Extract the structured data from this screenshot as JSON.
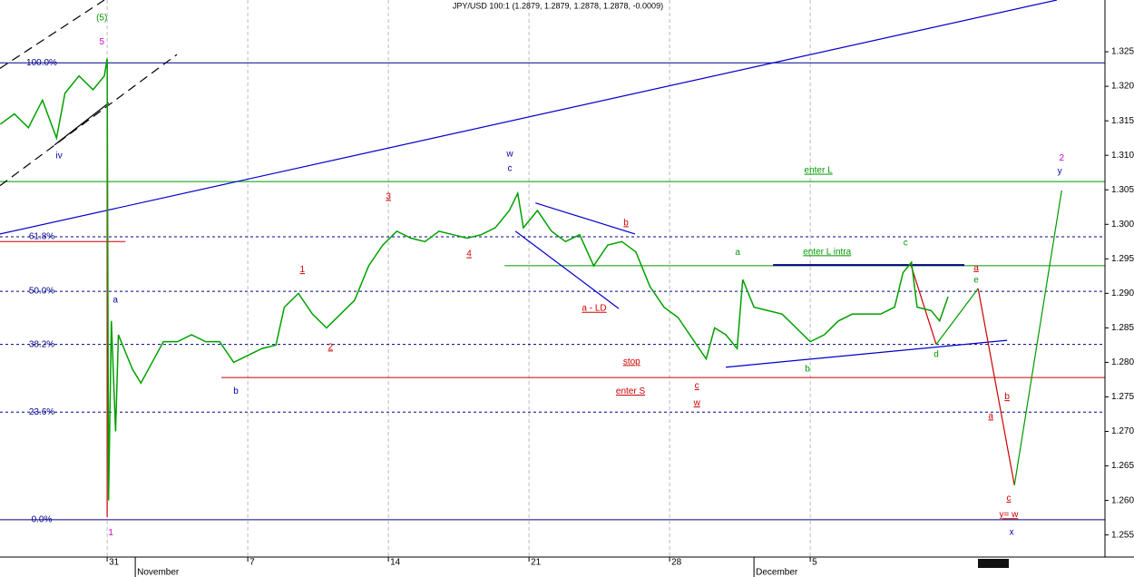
{
  "chart_data": {
    "type": "line",
    "title": "JPY/USD 100:1 (1.2879, 1.2879, 1.2878, 1.2878, -0.0009)",
    "xlim": [
      -3.81,
      35.48
    ],
    "ylim": [
      1.2518,
      1.3325
    ],
    "xticks": [
      {
        "value": 0,
        "label": "31"
      },
      {
        "value": 5,
        "label": "7"
      },
      {
        "value": 10,
        "label": "14"
      },
      {
        "value": 15,
        "label": "21"
      },
      {
        "value": 20,
        "label": "28"
      },
      {
        "value": 25,
        "label": "5"
      }
    ],
    "months": [
      {
        "value": 1,
        "label": "November"
      },
      {
        "value": 23,
        "label": "December"
      }
    ],
    "yticks": [
      1.255,
      {
        "value": 1.26,
        "label": "1.260"
      },
      1.265,
      {
        "value": 1.27,
        "label": "1.270"
      },
      1.275,
      {
        "value": 1.28,
        "label": "1.280"
      },
      1.285,
      {
        "value": 1.29,
        "label": "1.290"
      },
      1.295,
      {
        "value": 1.3,
        "label": "1.300"
      },
      1.305,
      {
        "value": 1.31,
        "label": "1.310"
      },
      1.315,
      {
        "value": 1.32,
        "label": "1.320"
      },
      1.325
    ],
    "grid": true,
    "series": [
      {
        "color": "#00a000",
        "x": [
          -3.8,
          -3.3,
          -2.8,
          -2.3,
          -1.8,
          -1.5,
          -1.0,
          -0.5,
          -0.1,
          0.0,
          0.05,
          0.15,
          0.3,
          0.4,
          0.6,
          0.9,
          1.2,
          1.6,
          2.0,
          2.5,
          3.0,
          3.5,
          4.0,
          4.5,
          5.0,
          5.5,
          6.0,
          6.3,
          6.8,
          7.3,
          7.8,
          8.3,
          8.8,
          9.3,
          9.8,
          10.3,
          10.8,
          11.3,
          11.8,
          12.3,
          12.8,
          13.3,
          13.8,
          14.3,
          14.6,
          14.8,
          15.3,
          15.8,
          16.3,
          16.8,
          17.3,
          17.8,
          18.3,
          18.8,
          19.3,
          19.8,
          20.3,
          20.8,
          21.3,
          21.6,
          22.0,
          22.4,
          22.6,
          23.0,
          23.5,
          24.0,
          24.5,
          25.0,
          25.5,
          26.0,
          26.5,
          27.0,
          27.5,
          28.0,
          28.3,
          28.6,
          28.8,
          29.3,
          29.6,
          29.9
        ],
        "values": [
          1.3145,
          1.316,
          1.314,
          1.318,
          1.3125,
          1.319,
          1.3215,
          1.3195,
          1.3215,
          1.324,
          1.26,
          1.286,
          1.27,
          1.284,
          1.282,
          1.279,
          1.277,
          1.28,
          1.283,
          1.283,
          1.284,
          1.283,
          1.283,
          1.28,
          1.281,
          1.282,
          1.2825,
          1.288,
          1.29,
          1.287,
          1.285,
          1.287,
          1.289,
          1.294,
          1.297,
          1.299,
          1.298,
          1.2975,
          1.299,
          1.2985,
          1.298,
          1.2985,
          1.2995,
          1.302,
          1.3045,
          1.2995,
          1.302,
          1.299,
          1.2975,
          1.2985,
          1.294,
          1.297,
          1.2975,
          1.296,
          1.291,
          1.288,
          1.2865,
          1.2835,
          1.2805,
          1.285,
          1.284,
          1.282,
          1.292,
          1.288,
          1.2875,
          1.287,
          1.285,
          1.283,
          1.284,
          1.286,
          1.287,
          1.287,
          1.287,
          1.288,
          1.293,
          1.2945,
          1.288,
          1.2875,
          1.286,
          1.2895
        ]
      }
    ],
    "levels": [
      {
        "label": "100.0%",
        "value": 1.3234,
        "color": "#00008b",
        "dashed": false
      },
      {
        "label": "61.8%",
        "value": 1.2982,
        "color": "#00008b",
        "dashed": true
      },
      {
        "label": "50.0%",
        "value": 1.2903,
        "color": "#00008b",
        "dashed": true
      },
      {
        "label": "38.2%",
        "value": 1.2826,
        "color": "#00008b",
        "dashed": true
      },
      {
        "label": "23.6%",
        "value": 1.2728,
        "color": "#00008b",
        "dashed": true
      },
      {
        "label": "0.0%",
        "value": 1.2572,
        "color": "#00008b",
        "dashed": false
      },
      {
        "value": 1.3062,
        "color": "#009900",
        "dashed": false,
        "from": -3.81
      },
      {
        "value": 1.294,
        "color": "#009900",
        "dashed": false,
        "from": 14.13
      },
      {
        "value": 1.2778,
        "color": "#cc0000",
        "dashed": false,
        "from": 4.06
      },
      {
        "value": 1.2975,
        "color": "#cc0000",
        "dashed": false,
        "from": -3.81,
        "to": 0.65
      }
    ],
    "lines": [
      {
        "from": [
          -3.81,
          1.2986
        ],
        "to": [
          33.77,
          1.3325
        ],
        "color": "#0000cc",
        "dashed": false
      },
      {
        "from": [
          -3.81,
          1.3226
        ],
        "to": [
          -0.1,
          1.3325
        ],
        "color": "#000000",
        "dashed": true
      },
      {
        "from": [
          -3.81,
          1.3056
        ],
        "to": [
          2.48,
          1.3246
        ],
        "color": "#000000",
        "dashed": true
      },
      {
        "from": [
          -1.87,
          1.3115
        ],
        "to": [
          0.06,
          1.3176
        ],
        "color": "#000000",
        "dashed": false
      },
      {
        "from": [
          0,
          1.3233
        ],
        "to": [
          0,
          1.2576
        ],
        "color": "#cc0000",
        "dashed": false
      },
      {
        "from": [
          15.23,
          1.3031
        ],
        "to": [
          18.77,
          1.2986
        ],
        "color": "#0000cc",
        "dashed": false
      },
      {
        "from": [
          14.52,
          1.299
        ],
        "to": [
          18.19,
          1.2878
        ],
        "color": "#0000cc",
        "dashed": false
      },
      {
        "from": [
          23.68,
          1.2941
        ],
        "to": [
          30.48,
          1.2941
        ],
        "color": "#000080",
        "dashed": false
      },
      {
        "from": [
          22.0,
          1.2793
        ],
        "to": [
          32.0,
          1.2832
        ],
        "color": "#0000cc",
        "dashed": false
      },
      {
        "from": [
          28.58,
          1.2941
        ],
        "to": [
          29.48,
          1.2826
        ],
        "color": "#cc0000",
        "dashed": false
      },
      {
        "from": [
          29.48,
          1.2826
        ],
        "to": [
          30.97,
          1.2907
        ],
        "color": "#009900",
        "dashed": false
      },
      {
        "from": [
          30.97,
          1.2907
        ],
        "to": [
          32.26,
          1.2622
        ],
        "color": "#cc0000",
        "dashed": false
      },
      {
        "from": [
          32.26,
          1.2622
        ],
        "to": [
          33.94,
          1.3049
        ],
        "color": "#009900",
        "dashed": false
      }
    ],
    "annotations": [
      {
        "text": "(5)",
        "x": -0.19,
        "y": 1.3299,
        "color": "#009900"
      },
      {
        "text": "5",
        "x": -0.19,
        "y": 1.3264,
        "color": "#cc00cc"
      },
      {
        "text": "iv",
        "x": -1.71,
        "y": 1.3099,
        "color": "#0000aa"
      },
      {
        "text": "1",
        "x": 0.13,
        "y": 1.2553,
        "color": "#cc00cc"
      },
      {
        "text": "a",
        "x": 0.29,
        "y": 1.289,
        "color": "#0000aa"
      },
      {
        "text": "b",
        "x": 4.58,
        "y": 1.2758,
        "color": "#0000aa"
      },
      {
        "text": "1",
        "x": 6.94,
        "y": 1.2934,
        "color": "#cc0000",
        "underline": true
      },
      {
        "text": "2",
        "x": 7.94,
        "y": 1.2822,
        "color": "#cc0000",
        "underline": true
      },
      {
        "text": "3",
        "x": 10.0,
        "y": 1.304,
        "color": "#cc0000",
        "underline": true
      },
      {
        "text": "4",
        "x": 12.87,
        "y": 1.2957,
        "color": "#cc0000",
        "underline": true
      },
      {
        "text": "w",
        "x": 14.32,
        "y": 1.3102,
        "color": "#0000aa"
      },
      {
        "text": "c",
        "x": 14.32,
        "y": 1.3081,
        "color": "#0000aa"
      },
      {
        "text": "b",
        "x": 18.45,
        "y": 1.3002,
        "color": "#cc0000",
        "underline": true
      },
      {
        "text": "a - LD",
        "x": 17.32,
        "y": 1.2878,
        "color": "#cc0000",
        "underline": true
      },
      {
        "text": "stop",
        "x": 18.65,
        "y": 1.2801,
        "color": "#cc0000",
        "underline": true
      },
      {
        "text": "enter S",
        "x": 18.61,
        "y": 1.2758,
        "color": "#cc0000",
        "underline": true
      },
      {
        "text": "c",
        "x": 20.97,
        "y": 1.2766,
        "color": "#cc0000",
        "underline": true
      },
      {
        "text": "w",
        "x": 20.97,
        "y": 1.2741,
        "color": "#cc0000",
        "underline": true
      },
      {
        "text": "a",
        "x": 22.42,
        "y": 1.2959,
        "color": "#009900"
      },
      {
        "text": "b",
        "x": 24.9,
        "y": 1.279,
        "color": "#009900"
      },
      {
        "text": "enter L",
        "x": 25.29,
        "y": 1.3078,
        "color": "#009900",
        "underline": true
      },
      {
        "text": "enter L intra",
        "x": 25.6,
        "y": 1.296,
        "color": "#009900",
        "underline": true
      },
      {
        "text": "c",
        "x": 28.39,
        "y": 1.2973,
        "color": "#009900"
      },
      {
        "text": "d",
        "x": 29.48,
        "y": 1.2811,
        "color": "#009900"
      },
      {
        "text": "a",
        "x": 30.9,
        "y": 1.2937,
        "color": "#cc0000",
        "underline": true
      },
      {
        "text": "e",
        "x": 30.9,
        "y": 1.2919,
        "color": "#009900"
      },
      {
        "text": "b",
        "x": 32.0,
        "y": 1.275,
        "color": "#cc0000",
        "underline": true
      },
      {
        "text": "a",
        "x": 31.42,
        "y": 1.2722,
        "color": "#cc0000",
        "underline": true
      },
      {
        "text": "c",
        "x": 32.06,
        "y": 1.2603,
        "color": "#cc0000",
        "underline": true
      },
      {
        "text": "y= w",
        "x": 32.06,
        "y": 1.2579,
        "color": "#cc0000",
        "underline": true
      },
      {
        "text": "x",
        "x": 32.16,
        "y": 1.2554,
        "color": "#0000aa"
      },
      {
        "text": "2",
        "x": 33.94,
        "y": 1.3096,
        "color": "#cc00cc"
      },
      {
        "text": "y",
        "x": 33.87,
        "y": 1.3077,
        "color": "#0000aa"
      }
    ]
  }
}
